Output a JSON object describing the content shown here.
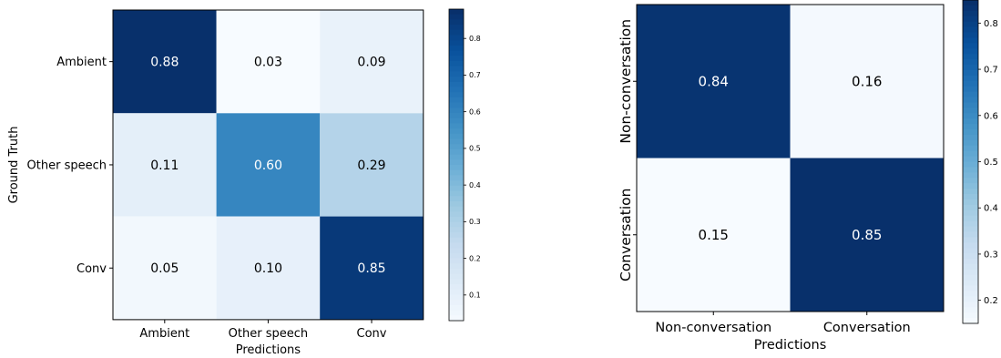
{
  "chart_data": [
    {
      "type": "heatmap",
      "row_labels": [
        "Ambient",
        "Other speech",
        "Conv"
      ],
      "col_labels": [
        "Ambient",
        "Other speech",
        "Conv"
      ],
      "values": [
        [
          0.88,
          0.03,
          0.09
        ],
        [
          0.11,
          0.6,
          0.29
        ],
        [
          0.05,
          0.1,
          0.85
        ]
      ],
      "cell_labels": [
        [
          "0.88",
          "0.03",
          "0.09"
        ],
        [
          "0.11",
          "0.60",
          "0.29"
        ],
        [
          "0.05",
          "0.10",
          "0.85"
        ]
      ],
      "xlabel": "Predictions",
      "ylabel": "Ground Truth",
      "colorbar": {
        "range": [
          0.03,
          0.88
        ],
        "ticks": [
          0.1,
          0.2,
          0.3,
          0.4,
          0.5,
          0.6,
          0.7,
          0.8
        ],
        "tick_labels": [
          "0.1",
          "0.2",
          "0.3",
          "0.4",
          "0.5",
          "0.6",
          "0.7",
          "0.8"
        ]
      },
      "colormap": "Blues"
    },
    {
      "type": "heatmap",
      "row_labels": [
        "Non-conversation",
        "Conversation"
      ],
      "col_labels": [
        "Non-conversation",
        "Conversation"
      ],
      "values": [
        [
          0.84,
          0.16
        ],
        [
          0.15,
          0.85
        ]
      ],
      "cell_labels": [
        [
          "0.84",
          "0.16"
        ],
        [
          "0.15",
          "0.85"
        ]
      ],
      "xlabel": "Predictions",
      "ylabel": "",
      "colorbar": {
        "range": [
          0.15,
          0.85
        ],
        "ticks": [
          0.2,
          0.3,
          0.4,
          0.5,
          0.6,
          0.7,
          0.8
        ],
        "tick_labels": [
          "0.2",
          "0.3",
          "0.4",
          "0.5",
          "0.6",
          "0.7",
          "0.8"
        ]
      },
      "colormap": "Blues"
    }
  ]
}
